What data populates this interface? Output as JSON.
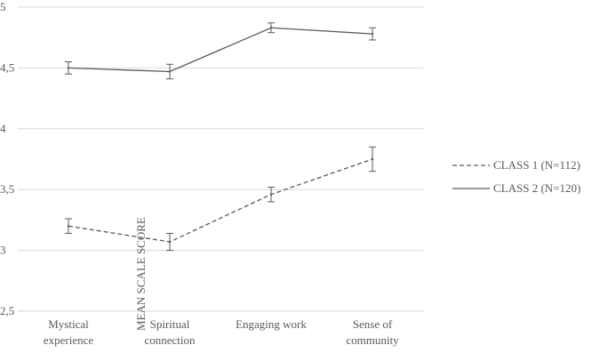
{
  "chart_data": {
    "type": "line",
    "categories": [
      [
        "Mystical",
        "experience"
      ],
      [
        "Spiritual",
        "connection"
      ],
      [
        "Engaging work"
      ],
      [
        "Sense of",
        "community"
      ]
    ],
    "ylabel": "MEAN SCALE SCORE",
    "xlabel": "",
    "title": "",
    "ylim": [
      2.5,
      5
    ],
    "yticks": [
      5,
      4.5,
      4,
      3.5,
      3,
      2.5
    ],
    "ytick_labels": [
      "5",
      "4,5",
      "4",
      "3,5",
      "3",
      "2,5"
    ],
    "grid": true,
    "legend_position": "right",
    "series": [
      {
        "name": "CLASS 1 (N=112)",
        "style": "dashed",
        "color": "#595959",
        "values": [
          3.2,
          3.07,
          3.46,
          3.75
        ],
        "error": [
          0.06,
          0.07,
          0.06,
          0.1
        ]
      },
      {
        "name": "CLASS 2 (N=120)",
        "style": "solid",
        "color": "#595959",
        "values": [
          4.5,
          4.47,
          4.83,
          4.78
        ],
        "error": [
          0.05,
          0.06,
          0.04,
          0.05
        ]
      }
    ]
  }
}
